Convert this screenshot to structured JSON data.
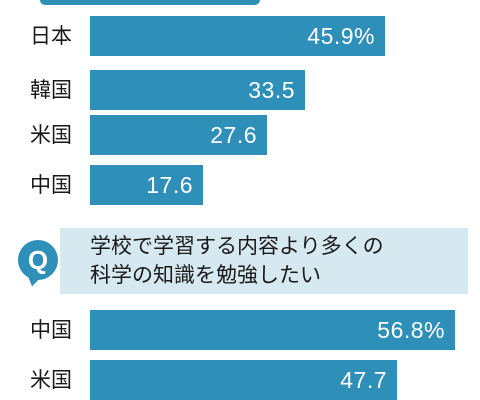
{
  "question": {
    "badge": "Q",
    "text": "学校で学習する内容より多くの\n科学の知識を勉強したい"
  },
  "colors": {
    "bar": "#2e8fb8",
    "question_bg": "#d6e9f1",
    "text": "#1a1a1a",
    "value_text": "#ffffff"
  },
  "chart_data": [
    {
      "type": "bar",
      "orientation": "horizontal",
      "categories": [
        "日本",
        "韓国",
        "米国",
        "中国"
      ],
      "values": [
        45.9,
        33.5,
        27.6,
        17.6
      ],
      "value_labels": [
        "45.9%",
        "33.5",
        "27.6",
        "17.6"
      ],
      "xlim": [
        0,
        60
      ]
    },
    {
      "type": "bar",
      "orientation": "horizontal",
      "categories": [
        "中国",
        "米国"
      ],
      "values": [
        56.8,
        47.7
      ],
      "value_labels": [
        "56.8%",
        "47.7"
      ],
      "xlim": [
        0,
        60
      ]
    }
  ]
}
